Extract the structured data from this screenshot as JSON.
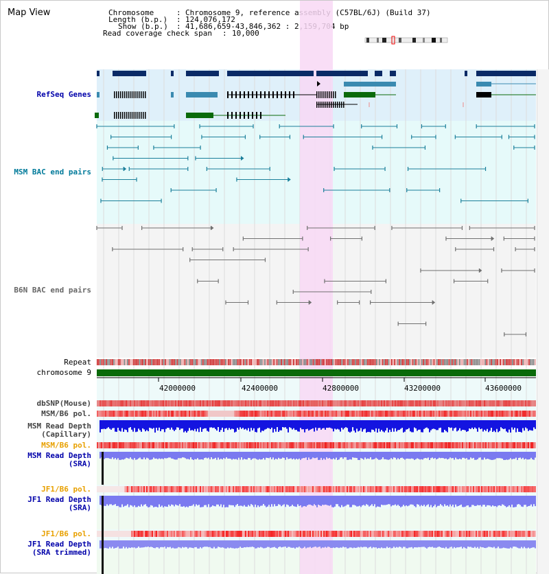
{
  "window": {
    "title": "Map View"
  },
  "header": {
    "chromosome_key": "Chromosome",
    "chromosome_value": "Chromosome 9, reference assembly (C57BL/6J) (Build 37)",
    "length_key": "Length (b.p.)",
    "length_value": "124,076,172",
    "show_key": "Show (b.p.)",
    "show_value": "41,686,659-43,846,362 : 2,159,704 bp",
    "span_key": "Read coverage check span",
    "span_value": "10,000"
  },
  "tracks": {
    "refseq": {
      "label": "RefSeq Genes",
      "color": "#0000aa"
    },
    "msm_bac": {
      "label": "MSM BAC end pairs",
      "color": "#007a9a"
    },
    "b6n_bac": {
      "label": "B6N BAC end pairs",
      "color": "#666666"
    },
    "repeat": {
      "label": "Repeat"
    },
    "chromosome": {
      "label": "chromosome 9",
      "color": "#006600"
    },
    "dbsnp": {
      "label": "dbSNP(Mouse)"
    },
    "msm_b6_pol_1": {
      "label": "MSM/B6 pol."
    },
    "msm_depth_cap_1": {
      "label": "MSM Read Depth"
    },
    "msm_depth_cap_2": {
      "label": "(Capillary)"
    },
    "msm_b6_pol_2": {
      "label": "MSM/B6 pol.",
      "color": "#e8a000"
    },
    "msm_depth_sra_1": {
      "label": "MSM Read Depth"
    },
    "msm_depth_sra_2": {
      "label": "(SRA)"
    },
    "jf1_b6_pol_1": {
      "label": "JF1/B6 pol.",
      "color": "#e8a000"
    },
    "jf1_depth_sra_1": {
      "label": "JF1 Read Depth"
    },
    "jf1_depth_sra_2": {
      "label": "(SRA)"
    },
    "jf1_b6_pol_2": {
      "label": "JF1/B6 pol.",
      "color": "#e8a000"
    },
    "jf1_depth_trim_1": {
      "label": "JF1 Read Depth"
    },
    "jf1_depth_trim_2": {
      "label": "(SRA trimmed)"
    }
  },
  "axis": {
    "ticks": [
      "42000000",
      "42400000",
      "42800000",
      "43200000",
      "43600000"
    ]
  },
  "colors": {
    "highlight": "#f8d8f4",
    "refseq_bg": "#dff0fa",
    "bac_bg": "#e6fafa",
    "b6n_bg": "#f4f4f4",
    "gene_dark": "#0a2a66",
    "gene_mid": "#3a8ab0",
    "gene_black": "#000000",
    "gene_green": "#0a6a0a"
  }
}
